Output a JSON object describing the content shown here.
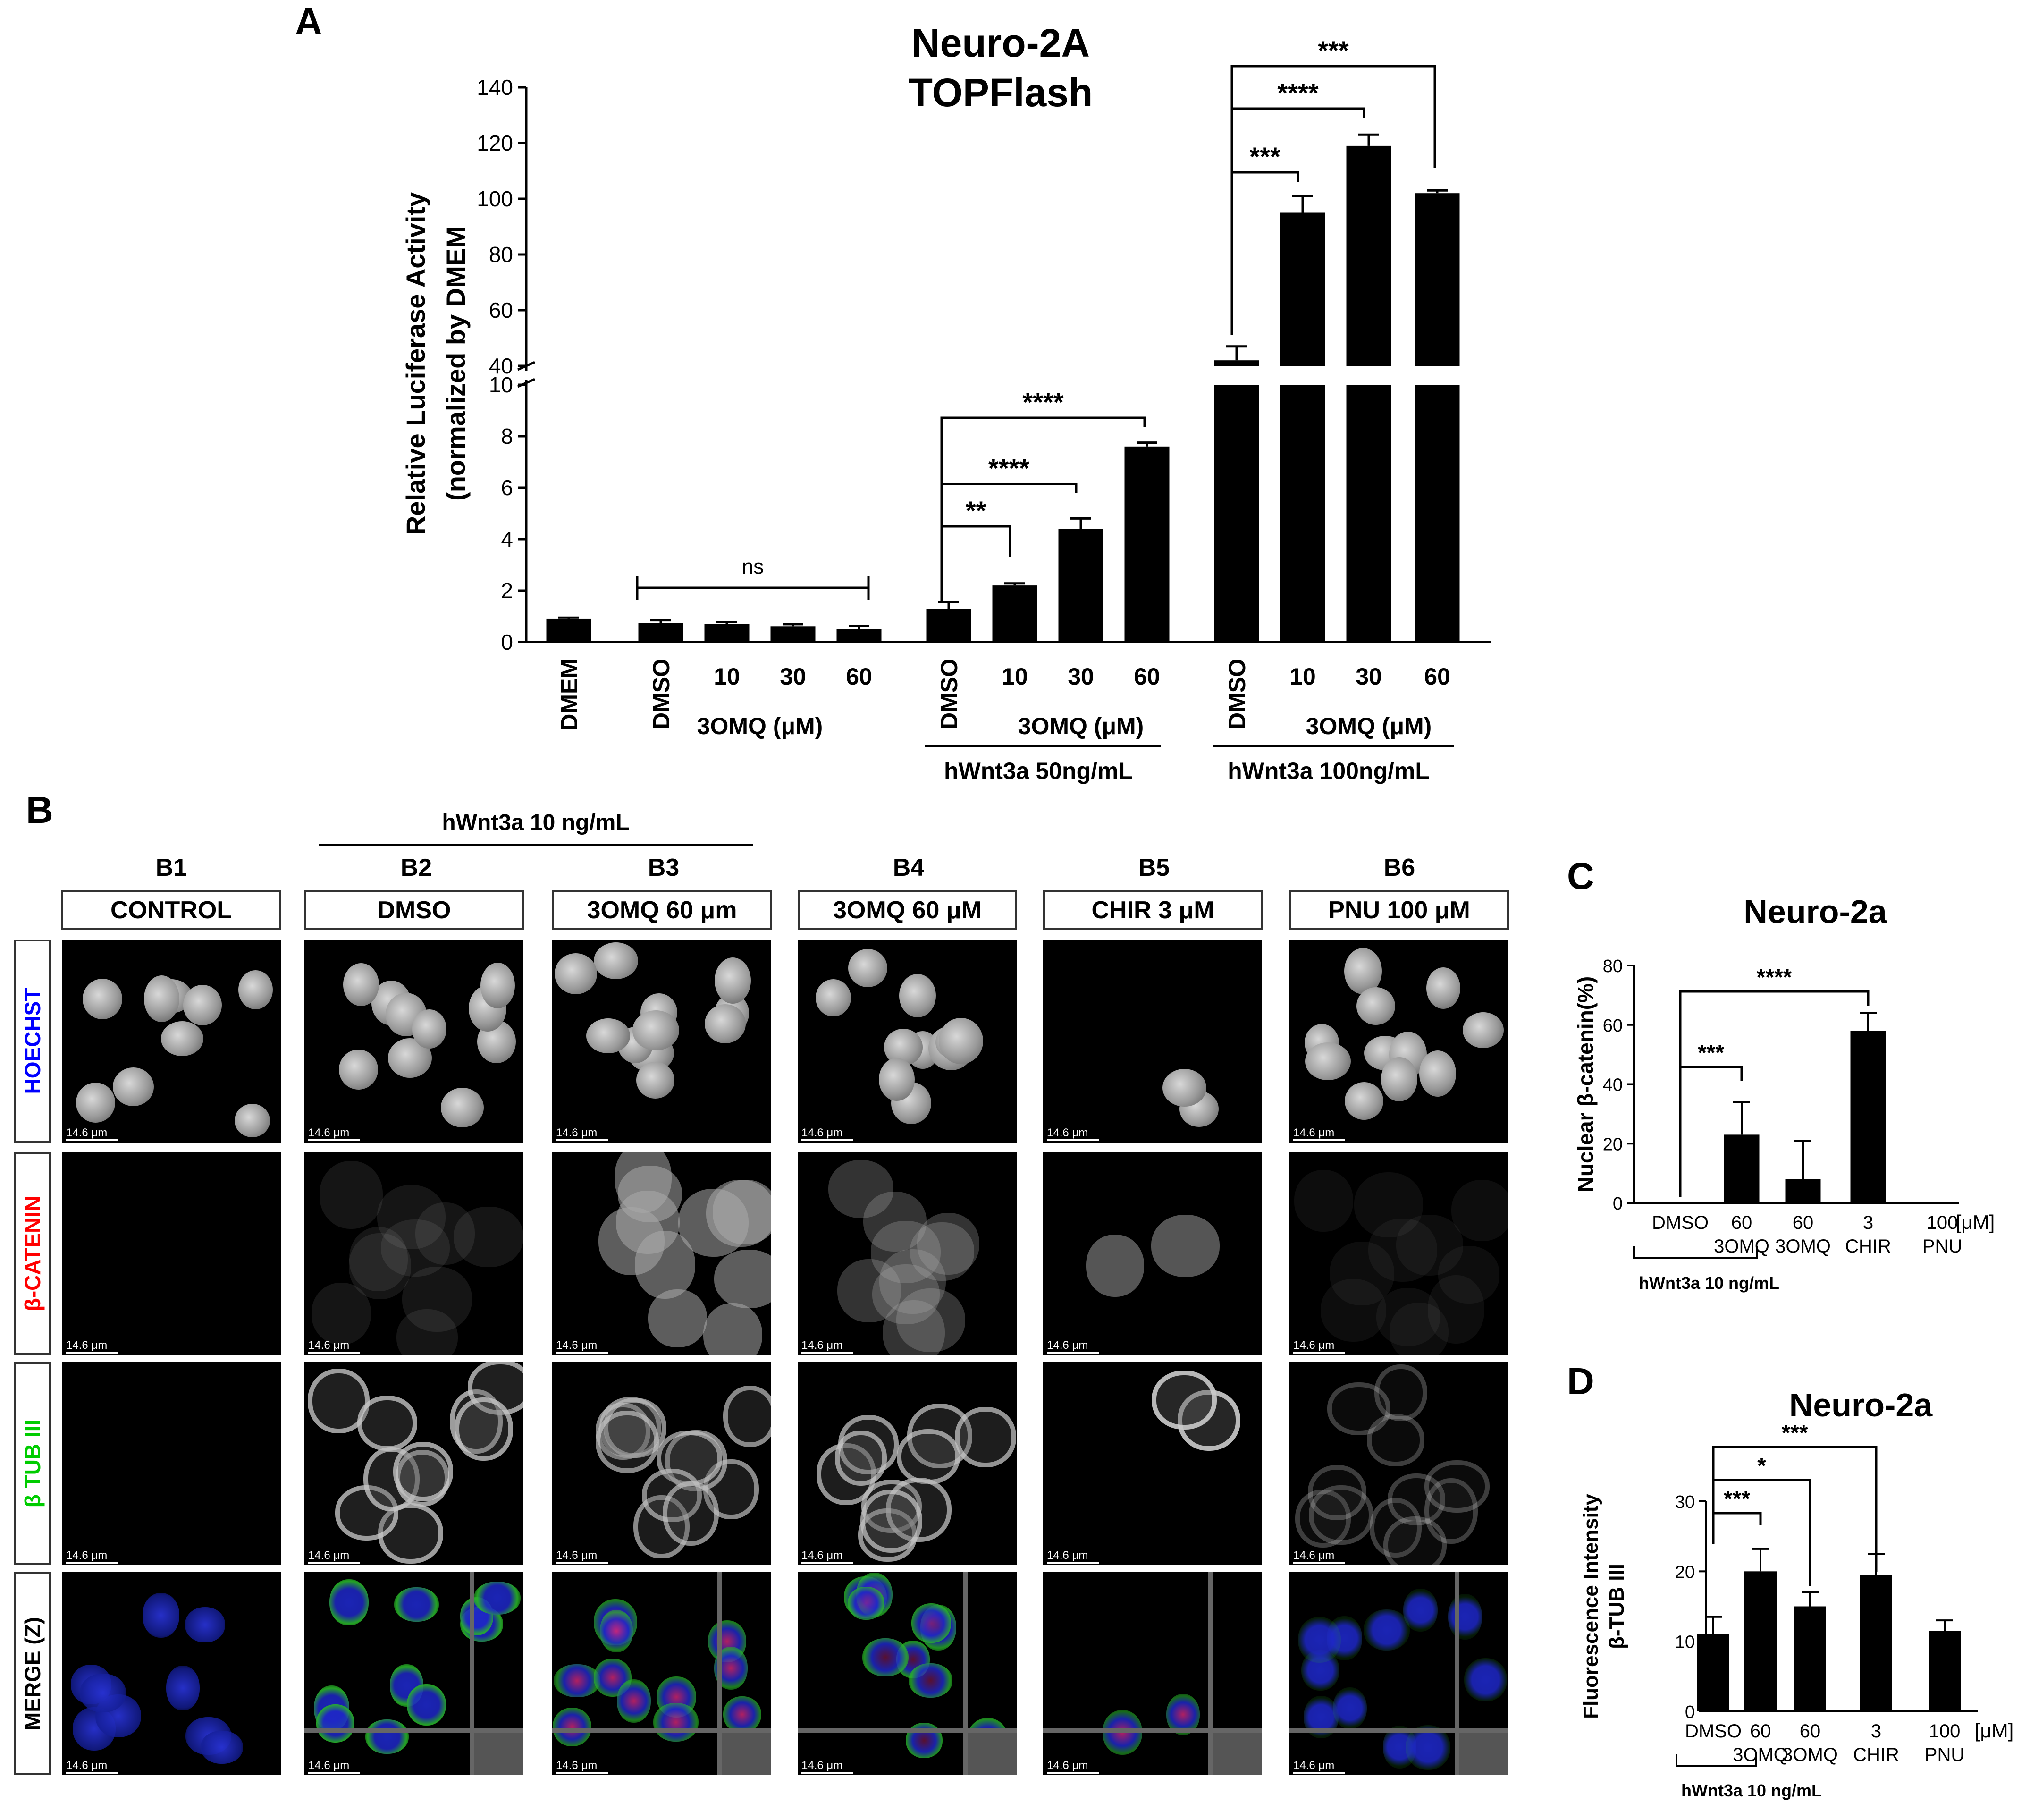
{
  "panels": {
    "A": "A",
    "B": "B",
    "C": "C",
    "D": "D"
  },
  "chart_data": [
    {
      "id": "A",
      "type": "bar",
      "title": "Neuro-2A TOPFlash",
      "title_lines": [
        "Neuro-2A",
        "TOPFlash"
      ],
      "ylabel_lines": [
        "Relative Luciferase  Activity",
        "(normalized by DMEM"
      ],
      "axis_break": true,
      "lower_ylim": [
        0,
        10
      ],
      "upper_ylim": [
        40,
        140
      ],
      "lower_ticks": [
        "0",
        "2",
        "4",
        "6",
        "8",
        "10"
      ],
      "upper_ticks": [
        "40",
        "60",
        "80",
        "100",
        "120",
        "140"
      ],
      "categories": [
        "DMEM",
        "DMSO",
        "10",
        "30",
        "60",
        "DMSO",
        "10",
        "30",
        "60",
        "DMSO",
        "10",
        "30",
        "60"
      ],
      "values": [
        0.9,
        0.75,
        0.7,
        0.6,
        0.5,
        1.3,
        2.2,
        4.4,
        7.6,
        42,
        95,
        119,
        102
      ],
      "errors": [
        0.05,
        0.1,
        0.08,
        0.1,
        0.12,
        0.25,
        0.08,
        0.4,
        0.15,
        5,
        6,
        4,
        1
      ],
      "group_labels": [
        "3OMQ (μM)",
        "3OMQ (μM)",
        "3OMQ (μM)"
      ],
      "treatment_labels": [
        "hWnt3a 50ng/mL",
        "hWnt3a 100ng/mL"
      ],
      "significance": [
        {
          "from": 1,
          "to": 4,
          "label": "ns"
        },
        {
          "from": 5,
          "to": 6,
          "label": "**"
        },
        {
          "from": 5,
          "to": 7,
          "label": "****"
        },
        {
          "from": 5,
          "to": 8,
          "label": "****"
        },
        {
          "from": 9,
          "to": 10,
          "label": "***"
        },
        {
          "from": 9,
          "to": 11,
          "label": "****"
        },
        {
          "from": 9,
          "to": 12,
          "label": "***"
        }
      ]
    },
    {
      "id": "C",
      "type": "bar",
      "title": "Neuro-2a",
      "ylabel": "Nuclear β-catenin(%)",
      "ylim": [
        0,
        80
      ],
      "ticks": [
        "0",
        "20",
        "40",
        "60",
        "80"
      ],
      "categories": [
        "DMSO",
        "60\n3OMQ",
        "60\n3OMQ",
        "3\nCHIR",
        "100\nPNU"
      ],
      "values": [
        0,
        23,
        8,
        58,
        0
      ],
      "errors": [
        0,
        11,
        13,
        6,
        0
      ],
      "unit": "[μM]",
      "treatment_label": "hWnt3a 10 ng/mL",
      "significance": [
        {
          "from": 0,
          "to": 1,
          "label": "***"
        },
        {
          "from": 0,
          "to": 3,
          "label": "****"
        }
      ]
    },
    {
      "id": "D",
      "type": "bar",
      "title": "Neuro-2a",
      "ylabel_lines": [
        "Fluorescence Intensity",
        "β-TUB III"
      ],
      "ylim": [
        0,
        30
      ],
      "ticks": [
        "0",
        "10",
        "20",
        "30"
      ],
      "categories": [
        "DMSO",
        "60\n3OMQ",
        "60\n3OMQ",
        "3\nCHIR",
        "100\nPNU"
      ],
      "values": [
        11,
        20,
        15,
        19.5,
        11.5
      ],
      "errors": [
        2.5,
        3.2,
        2,
        3,
        1.5
      ],
      "unit": "[μM]",
      "treatment_label": "hWnt3a 10 ng/mL",
      "significance": [
        {
          "from": 0,
          "to": 1,
          "label": "***"
        },
        {
          "from": 0,
          "to": 2,
          "label": "*"
        },
        {
          "from": 0,
          "to": 3,
          "label": "***"
        }
      ]
    }
  ],
  "micrographs": {
    "treatment_header": "hWnt3a 10 ng/mL",
    "columns": [
      {
        "id": "B1",
        "label": "CONTROL"
      },
      {
        "id": "B2",
        "label": "DMSO"
      },
      {
        "id": "B3",
        "label": "3OMQ 60 μm"
      },
      {
        "id": "B4",
        "label": "3OMQ 60 μM"
      },
      {
        "id": "B5",
        "label": "CHIR 3 μM"
      },
      {
        "id": "B6",
        "label": "PNU 100 μM"
      }
    ],
    "rows": [
      {
        "label": "HOECHST",
        "color": "#0000ff"
      },
      {
        "label": "β-CATENIN",
        "color": "#ff0000"
      },
      {
        "label": "β TUB III",
        "color": "#00cc00"
      },
      {
        "label": "MERGE (Z)",
        "color": "#000000"
      }
    ],
    "scale_bar": "14.6 μm"
  }
}
